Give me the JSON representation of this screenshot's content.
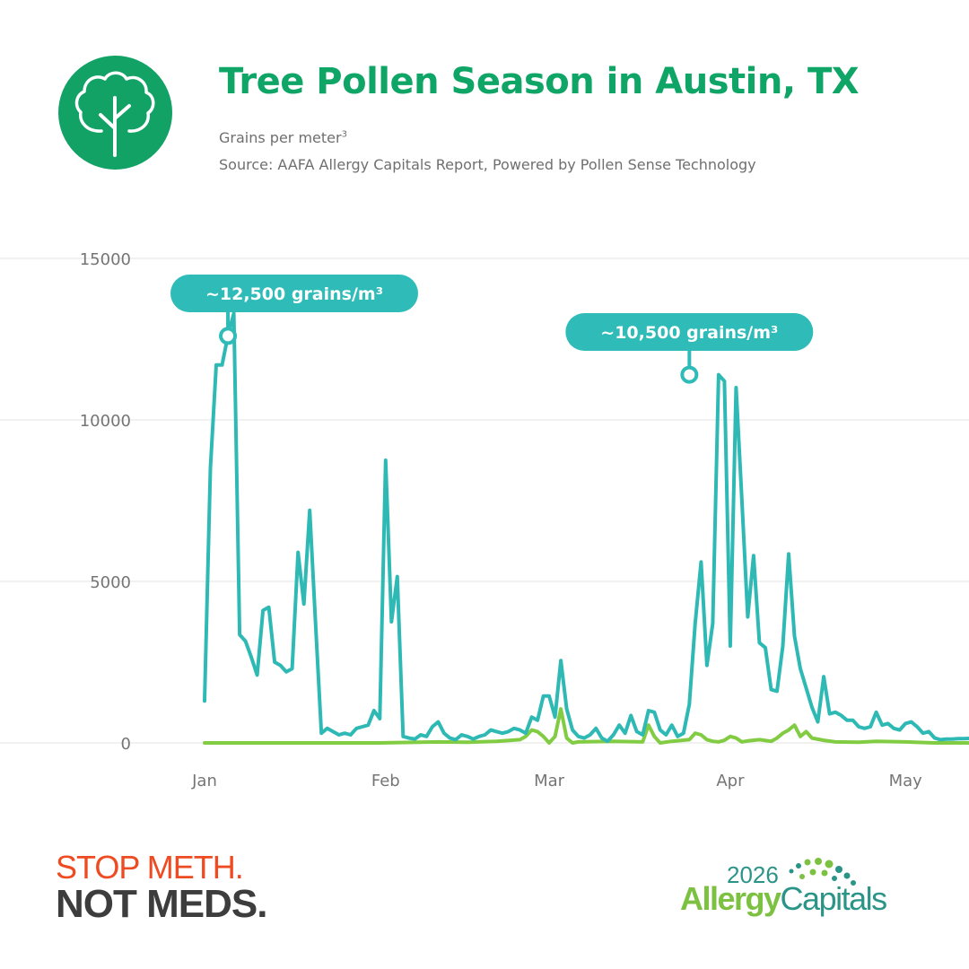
{
  "header": {
    "title": "Tree Pollen Season in Austin, TX",
    "subtitle": "Grains per meter",
    "subtitle_sup": "3",
    "source": "Source: AAFA Allergy Capitals Report, Powered by Pollen Sense Technology",
    "icon": "tree-icon"
  },
  "footer": {
    "campaign_line1": "STOP METH.",
    "campaign_line2": "NOT MEDS.",
    "brand_year": "2026",
    "brand_allergy": "Allergy",
    "brand_capitals": "Capitals"
  },
  "colors": {
    "brand_green": "#12a266",
    "series_teal": "#2fb9b5",
    "series_green": "#82cc44",
    "callout_bg": "#2fbcb8",
    "grid": "#e3e3e3",
    "axis_text": "#757575",
    "stop_red": "#ee4b22",
    "stop_dark": "#3d3d3d"
  },
  "chart_data": {
    "type": "line",
    "title": "Tree Pollen Season in Austin, TX",
    "ylabel": "Grains per meter³",
    "xlabel": "",
    "ylim": [
      0,
      15000
    ],
    "yticks": [
      0,
      5000,
      10000,
      15000
    ],
    "xticks": [
      "Jan",
      "Feb",
      "Mar",
      "Apr",
      "May"
    ],
    "x_range": [
      "Jan 1",
      "May 10"
    ],
    "grid": true,
    "annotations": [
      {
        "label": "~12,500 grains/m³",
        "day": 4,
        "value": 12600
      },
      {
        "label": "~10,500 grains/m³",
        "day": 83,
        "value": 11400
      }
    ],
    "series": [
      {
        "color": "#2fb9b5",
        "points": [
          [
            0,
            1300
          ],
          [
            1,
            8500
          ],
          [
            2,
            11700
          ],
          [
            3,
            11700
          ],
          [
            4,
            12600
          ],
          [
            5,
            13300
          ],
          [
            6,
            3350
          ],
          [
            7,
            3150
          ],
          [
            8,
            2650
          ],
          [
            9,
            2100
          ],
          [
            10,
            4100
          ],
          [
            11,
            4200
          ],
          [
            12,
            2500
          ],
          [
            13,
            2400
          ],
          [
            14,
            2200
          ],
          [
            15,
            2300
          ],
          [
            16,
            5900
          ],
          [
            17,
            4300
          ],
          [
            18,
            7200
          ],
          [
            19,
            3700
          ],
          [
            20,
            300
          ],
          [
            21,
            450
          ],
          [
            22,
            350
          ],
          [
            23,
            250
          ],
          [
            24,
            300
          ],
          [
            25,
            250
          ],
          [
            26,
            450
          ],
          [
            27,
            500
          ],
          [
            28,
            550
          ],
          [
            29,
            1000
          ],
          [
            30,
            750
          ],
          [
            31,
            8750
          ],
          [
            32,
            3750
          ],
          [
            33,
            5150
          ],
          [
            34,
            200
          ],
          [
            35,
            150
          ],
          [
            36,
            120
          ],
          [
            37,
            250
          ],
          [
            38,
            200
          ],
          [
            39,
            500
          ],
          [
            40,
            650
          ],
          [
            41,
            300
          ],
          [
            42,
            150
          ],
          [
            43,
            100
          ],
          [
            44,
            250
          ],
          [
            45,
            200
          ],
          [
            46,
            120
          ],
          [
            47,
            200
          ],
          [
            48,
            250
          ],
          [
            49,
            400
          ],
          [
            50,
            350
          ],
          [
            51,
            300
          ],
          [
            52,
            350
          ],
          [
            53,
            450
          ],
          [
            54,
            400
          ],
          [
            55,
            300
          ],
          [
            56,
            800
          ],
          [
            57,
            700
          ],
          [
            58,
            1450
          ],
          [
            59,
            1450
          ],
          [
            60,
            800
          ],
          [
            61,
            2550
          ],
          [
            62,
            1050
          ],
          [
            63,
            400
          ],
          [
            64,
            200
          ],
          [
            65,
            150
          ],
          [
            66,
            250
          ],
          [
            67,
            450
          ],
          [
            68,
            150
          ],
          [
            69,
            50
          ],
          [
            70,
            250
          ],
          [
            71,
            550
          ],
          [
            72,
            300
          ],
          [
            73,
            850
          ],
          [
            74,
            350
          ],
          [
            75,
            250
          ],
          [
            76,
            1000
          ],
          [
            77,
            950
          ],
          [
            78,
            400
          ],
          [
            79,
            250
          ],
          [
            80,
            550
          ],
          [
            81,
            200
          ],
          [
            82,
            300
          ],
          [
            83,
            1200
          ],
          [
            84,
            3700
          ],
          [
            85,
            5600
          ],
          [
            86,
            2400
          ],
          [
            87,
            3700
          ],
          [
            88,
            11400
          ],
          [
            89,
            11200
          ],
          [
            90,
            3000
          ],
          [
            91,
            11000
          ],
          [
            92,
            7500
          ],
          [
            93,
            3900
          ],
          [
            94,
            5800
          ],
          [
            95,
            3100
          ],
          [
            96,
            2950
          ],
          [
            97,
            1650
          ],
          [
            98,
            1600
          ],
          [
            99,
            3000
          ],
          [
            100,
            5850
          ],
          [
            101,
            3300
          ],
          [
            102,
            2300
          ],
          [
            103,
            1700
          ],
          [
            104,
            1100
          ],
          [
            105,
            650
          ],
          [
            106,
            2050
          ],
          [
            107,
            900
          ],
          [
            108,
            950
          ],
          [
            109,
            850
          ],
          [
            110,
            700
          ],
          [
            111,
            700
          ],
          [
            112,
            500
          ],
          [
            113,
            450
          ],
          [
            114,
            500
          ],
          [
            115,
            950
          ],
          [
            116,
            550
          ],
          [
            117,
            600
          ],
          [
            118,
            450
          ],
          [
            119,
            400
          ],
          [
            120,
            600
          ],
          [
            121,
            650
          ],
          [
            122,
            500
          ],
          [
            123,
            300
          ],
          [
            124,
            350
          ],
          [
            125,
            150
          ],
          [
            126,
            100
          ],
          [
            127,
            120
          ],
          [
            128,
            120
          ],
          [
            129,
            130
          ],
          [
            130,
            130
          ],
          [
            131,
            140
          ],
          [
            132,
            150
          ],
          [
            133,
            150
          ],
          [
            134,
            150
          ],
          [
            135,
            150
          ],
          [
            136,
            150
          ],
          [
            137,
            150
          ],
          [
            138,
            150
          ],
          [
            139,
            150
          ],
          [
            140,
            150
          ]
        ]
      },
      {
        "color": "#82cc44",
        "points": [
          [
            0,
            0
          ],
          [
            10,
            0
          ],
          [
            20,
            0
          ],
          [
            30,
            0
          ],
          [
            40,
            30
          ],
          [
            45,
            20
          ],
          [
            50,
            50
          ],
          [
            54,
            100
          ],
          [
            55,
            200
          ],
          [
            56,
            400
          ],
          [
            57,
            350
          ],
          [
            58,
            200
          ],
          [
            59,
            0
          ],
          [
            60,
            200
          ],
          [
            61,
            1050
          ],
          [
            62,
            150
          ],
          [
            63,
            0
          ],
          [
            64,
            30
          ],
          [
            70,
            50
          ],
          [
            75,
            30
          ],
          [
            76,
            550
          ],
          [
            77,
            200
          ],
          [
            78,
            0
          ],
          [
            80,
            50
          ],
          [
            83,
            100
          ],
          [
            84,
            300
          ],
          [
            85,
            250
          ],
          [
            86,
            100
          ],
          [
            87,
            50
          ],
          [
            88,
            30
          ],
          [
            89,
            80
          ],
          [
            90,
            200
          ],
          [
            91,
            150
          ],
          [
            92,
            30
          ],
          [
            93,
            60
          ],
          [
            95,
            100
          ],
          [
            97,
            50
          ],
          [
            98,
            150
          ],
          [
            99,
            300
          ],
          [
            100,
            400
          ],
          [
            101,
            550
          ],
          [
            102,
            200
          ],
          [
            103,
            350
          ],
          [
            104,
            150
          ],
          [
            106,
            80
          ],
          [
            108,
            30
          ],
          [
            112,
            20
          ],
          [
            115,
            50
          ],
          [
            120,
            30
          ],
          [
            125,
            0
          ],
          [
            140,
            0
          ]
        ]
      }
    ]
  }
}
